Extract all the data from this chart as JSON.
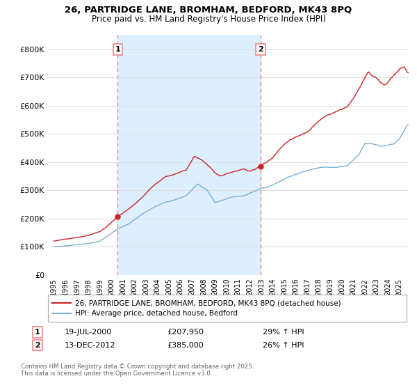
{
  "title1": "26, PARTRIDGE LANE, BROMHAM, BEDFORD, MK43 8PQ",
  "title2": "Price paid vs. HM Land Registry's House Price Index (HPI)",
  "ylim": [
    0,
    850000
  ],
  "yticks": [
    0,
    100000,
    200000,
    300000,
    400000,
    500000,
    600000,
    700000,
    800000
  ],
  "ytick_labels": [
    "£0",
    "£100K",
    "£200K",
    "£300K",
    "£400K",
    "£500K",
    "£600K",
    "£700K",
    "£800K"
  ],
  "sale1_x": 2000.55,
  "sale1_y": 207950,
  "sale1_label": "1",
  "sale1_date": "19-JUL-2000",
  "sale1_price": "£207,950",
  "sale1_hpi": "29% ↑ HPI",
  "sale2_x": 2012.95,
  "sale2_y": 385000,
  "sale2_label": "2",
  "sale2_date": "13-DEC-2012",
  "sale2_price": "£385,000",
  "sale2_hpi": "26% ↑ HPI",
  "red_color": "#cc2222",
  "blue_color": "#7ab0d4",
  "vline_color": "#ee8888",
  "shade_color": "#ddeeff",
  "grid_color": "#dddddd",
  "background_color": "#ffffff",
  "legend1": "26, PARTRIDGE LANE, BROMHAM, BEDFORD, MK43 8PQ (detached house)",
  "legend2": "HPI: Average price, detached house, Bedford",
  "footnote": "Contains HM Land Registry data © Crown copyright and database right 2025.\nThis data is licensed under the Open Government Licence v3.0.",
  "xlim_start": 1994.5,
  "xlim_end": 2025.8
}
